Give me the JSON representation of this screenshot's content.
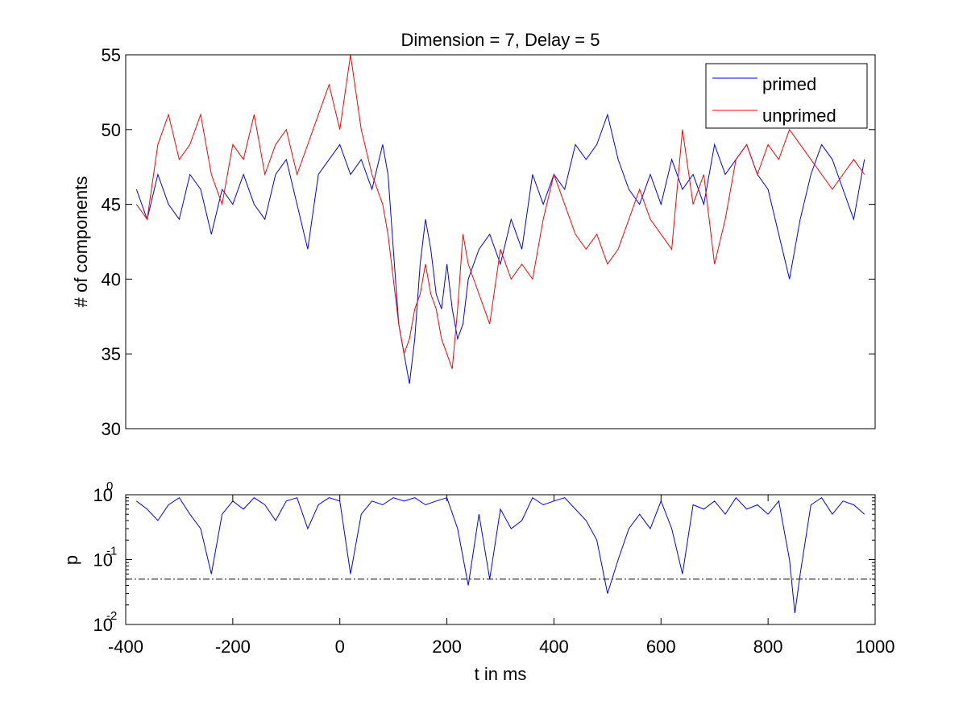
{
  "chart_data": [
    {
      "type": "line",
      "title": "Dimension  = 7, Delay = 5",
      "xlabel": "",
      "ylabel": "# of components",
      "xlim": [
        -400,
        1000
      ],
      "ylim": [
        30,
        55
      ],
      "yticks": [
        "30",
        "35",
        "40",
        "45",
        "50",
        "55"
      ],
      "grid": false,
      "legend_position": "top-right",
      "series": [
        {
          "name": "primed",
          "color": "#0000ff",
          "x": [
            -380,
            -360,
            -340,
            -320,
            -300,
            -280,
            -260,
            -240,
            -220,
            -200,
            -180,
            -160,
            -140,
            -120,
            -100,
            -80,
            -60,
            -40,
            -20,
            0,
            20,
            40,
            60,
            80,
            90,
            100,
            110,
            120,
            130,
            140,
            150,
            160,
            170,
            180,
            190,
            200,
            210,
            220,
            230,
            240,
            260,
            280,
            300,
            320,
            340,
            360,
            380,
            400,
            420,
            440,
            460,
            480,
            500,
            520,
            540,
            560,
            580,
            600,
            620,
            640,
            660,
            680,
            700,
            720,
            740,
            760,
            780,
            800,
            820,
            840,
            860,
            880,
            900,
            920,
            940,
            960,
            980
          ],
          "y": [
            46,
            44,
            47,
            45,
            44,
            47,
            46,
            43,
            46,
            45,
            47,
            45,
            44,
            47,
            48,
            45,
            42,
            47,
            48,
            49,
            47,
            48,
            46,
            49,
            47,
            42,
            37,
            35,
            33,
            36,
            41,
            44,
            42,
            39,
            38,
            41,
            38,
            36,
            37,
            40,
            42,
            43,
            41,
            44,
            42,
            47,
            45,
            47,
            46,
            49,
            48,
            49,
            51,
            48,
            46,
            45,
            47,
            45,
            48,
            46,
            47,
            45,
            49,
            47,
            48,
            49,
            47,
            46,
            43,
            40,
            44,
            47,
            49,
            48,
            46,
            44,
            48
          ]
        },
        {
          "name": "unprimed",
          "color": "#ff0000",
          "x": [
            -380,
            -360,
            -340,
            -320,
            -300,
            -280,
            -260,
            -240,
            -220,
            -200,
            -180,
            -160,
            -140,
            -120,
            -100,
            -80,
            -60,
            -40,
            -20,
            0,
            20,
            40,
            60,
            80,
            90,
            100,
            110,
            120,
            130,
            140,
            150,
            160,
            170,
            180,
            190,
            200,
            210,
            220,
            230,
            240,
            260,
            280,
            300,
            320,
            340,
            360,
            380,
            400,
            420,
            440,
            460,
            480,
            500,
            520,
            540,
            560,
            580,
            600,
            620,
            640,
            660,
            680,
            700,
            720,
            740,
            760,
            780,
            800,
            820,
            840,
            860,
            880,
            900,
            920,
            940,
            960,
            980
          ],
          "y": [
            45,
            44,
            49,
            51,
            48,
            49,
            51,
            47,
            45,
            49,
            48,
            51,
            47,
            49,
            50,
            47,
            49,
            51,
            53,
            50,
            55,
            50,
            47,
            45,
            43,
            40,
            37,
            35,
            36,
            38,
            39,
            41,
            39,
            38,
            36,
            35,
            34,
            38,
            43,
            41,
            39,
            37,
            42,
            40,
            41,
            40,
            44,
            47,
            45,
            43,
            42,
            43,
            41,
            42,
            44,
            46,
            44,
            43,
            42,
            50,
            45,
            47,
            41,
            44,
            48,
            49,
            47,
            49,
            48,
            50,
            49,
            48,
            47,
            46,
            47,
            48,
            47
          ]
        }
      ]
    },
    {
      "type": "line",
      "title": "",
      "xlabel": "t in ms",
      "ylabel": "p",
      "xlim": [
        -400,
        1000
      ],
      "ylim": [
        0.01,
        1
      ],
      "yscale": "log",
      "ytick_base": "10",
      "ytick_exponents": [
        "0",
        "-1",
        "-2"
      ],
      "xticks": [
        "-400",
        "-200",
        "0",
        "200",
        "400",
        "600",
        "800",
        "1000"
      ],
      "threshold": 0.05,
      "grid": false,
      "series": [
        {
          "color": "#0000ff",
          "x": [
            -380,
            -360,
            -340,
            -320,
            -300,
            -280,
            -260,
            -240,
            -220,
            -200,
            -180,
            -160,
            -140,
            -120,
            -100,
            -80,
            -60,
            -40,
            -20,
            0,
            20,
            40,
            60,
            80,
            100,
            120,
            140,
            160,
            180,
            200,
            220,
            240,
            260,
            280,
            300,
            320,
            340,
            360,
            380,
            400,
            420,
            440,
            460,
            480,
            500,
            520,
            540,
            560,
            580,
            600,
            620,
            640,
            660,
            680,
            700,
            720,
            740,
            760,
            780,
            800,
            820,
            840,
            850,
            860,
            880,
            900,
            920,
            940,
            960,
            980
          ],
          "y": [
            0.8,
            0.6,
            0.4,
            0.7,
            0.9,
            0.5,
            0.3,
            0.06,
            0.5,
            0.8,
            0.6,
            0.9,
            0.7,
            0.4,
            0.8,
            0.9,
            0.3,
            0.7,
            0.9,
            0.8,
            0.06,
            0.5,
            0.8,
            0.7,
            0.9,
            0.8,
            0.9,
            0.7,
            0.8,
            0.9,
            0.3,
            0.04,
            0.5,
            0.05,
            0.6,
            0.3,
            0.4,
            0.9,
            0.7,
            0.8,
            0.9,
            0.6,
            0.4,
            0.2,
            0.03,
            0.1,
            0.3,
            0.5,
            0.3,
            0.8,
            0.3,
            0.06,
            0.7,
            0.6,
            0.8,
            0.5,
            0.9,
            0.6,
            0.7,
            0.5,
            0.8,
            0.1,
            0.015,
            0.06,
            0.7,
            0.9,
            0.5,
            0.8,
            0.7,
            0.5
          ]
        }
      ]
    }
  ]
}
